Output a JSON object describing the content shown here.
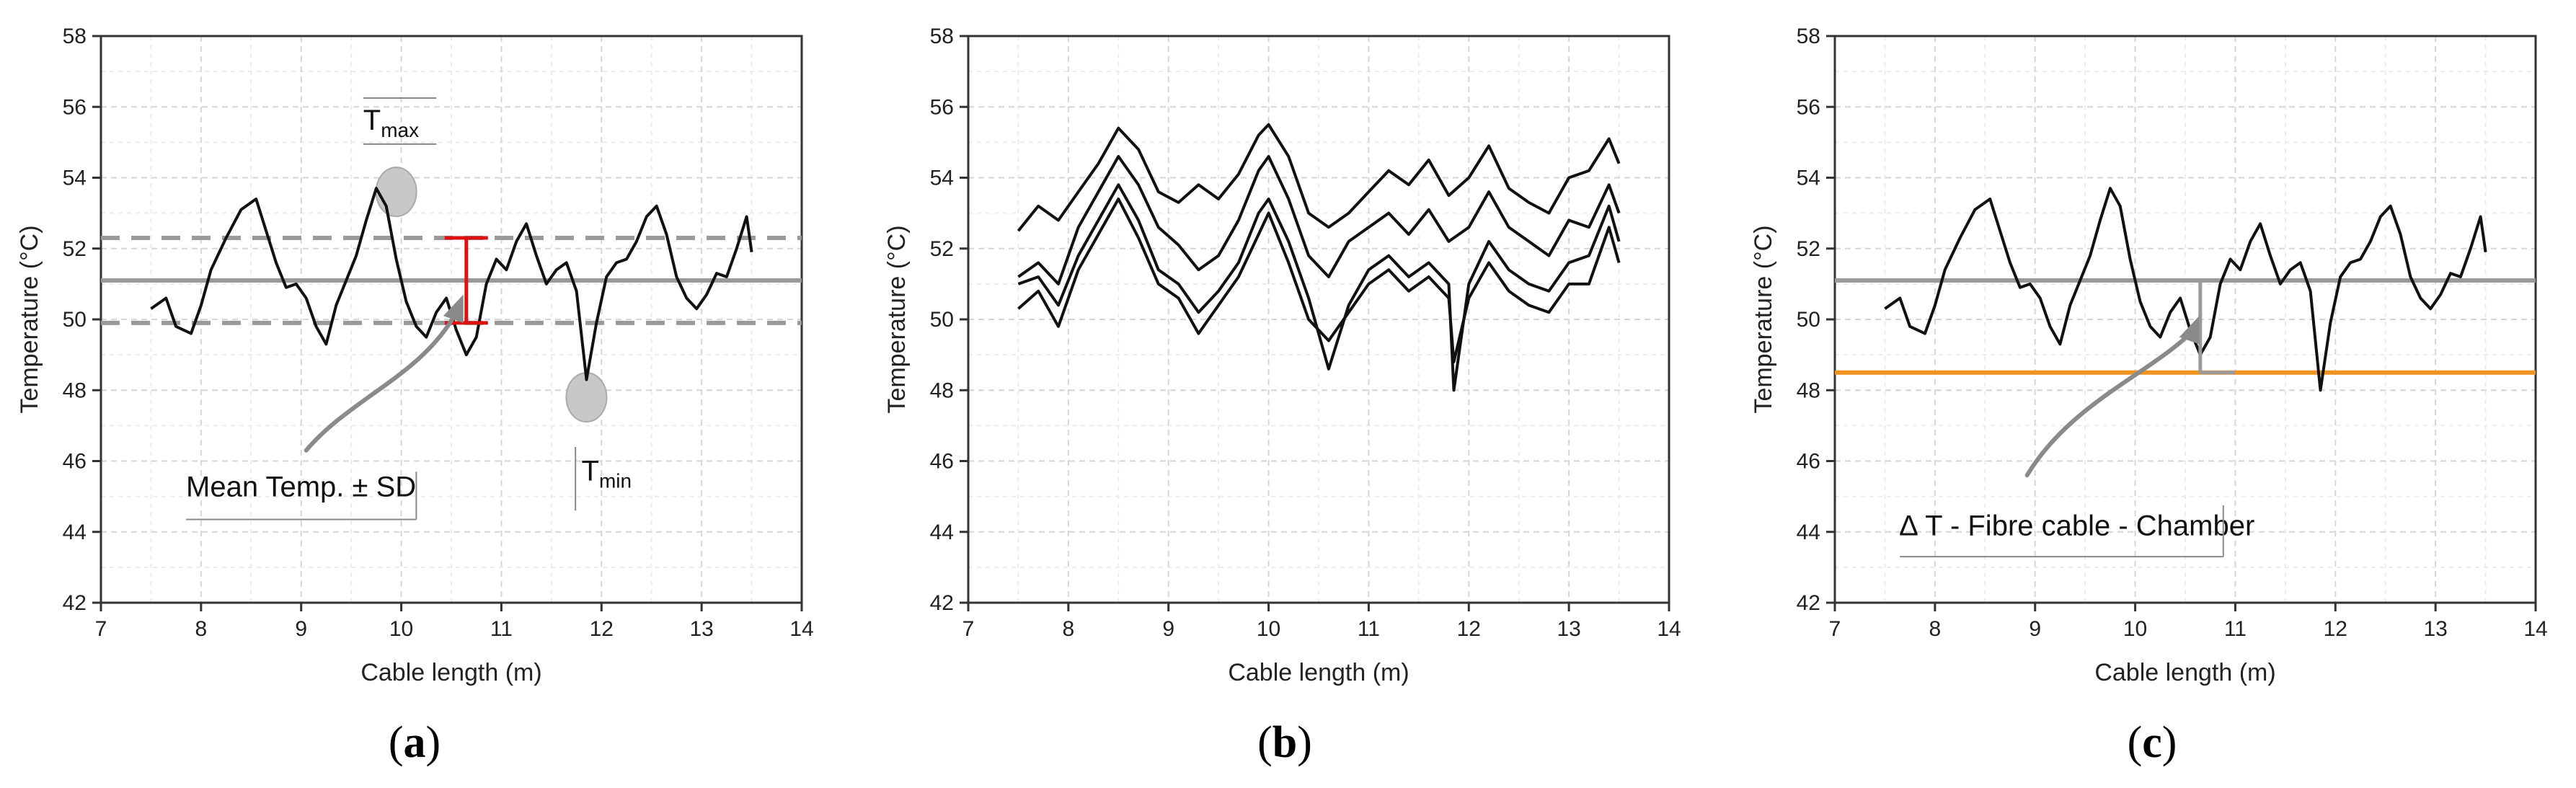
{
  "chart_data": [
    {
      "type": "line",
      "panel": "a",
      "panel_label": "a",
      "xlabel": "Cable length (m)",
      "ylabel": "Temperature (°C)",
      "xlim": [
        7,
        14
      ],
      "ylim": [
        42,
        58
      ],
      "x_ticks": [
        7,
        8,
        9,
        10,
        11,
        12,
        13,
        14
      ],
      "y_ticks": [
        42,
        44,
        46,
        48,
        50,
        52,
        54,
        56,
        58
      ],
      "grid": true,
      "series_color": "#111111",
      "series": [
        {
          "x": [
            7.5,
            7.65,
            7.75,
            7.9,
            8.0,
            8.1,
            8.25,
            8.4,
            8.55,
            8.65,
            8.75,
            8.85,
            8.95,
            9.05,
            9.15,
            9.25,
            9.35,
            9.45,
            9.55,
            9.65,
            9.75,
            9.85,
            9.95,
            10.05,
            10.15,
            10.25,
            10.35,
            10.45,
            10.55,
            10.65,
            10.75,
            10.85,
            10.95,
            11.05,
            11.15,
            11.25,
            11.35,
            11.45,
            11.55,
            11.65,
            11.75,
            11.85,
            11.95,
            12.05,
            12.15,
            12.25,
            12.35,
            12.45,
            12.55,
            12.65,
            12.75,
            12.85,
            12.95,
            13.05,
            13.15,
            13.25,
            13.35,
            13.45,
            13.5
          ],
          "y": [
            50.3,
            50.6,
            49.8,
            49.6,
            50.4,
            51.4,
            52.3,
            53.1,
            53.4,
            52.5,
            51.6,
            50.9,
            51.0,
            50.6,
            49.8,
            49.3,
            50.4,
            51.1,
            51.8,
            52.8,
            53.7,
            53.2,
            51.7,
            50.5,
            49.8,
            49.5,
            50.2,
            50.6,
            49.7,
            49.0,
            49.5,
            51.0,
            51.7,
            51.4,
            52.2,
            52.7,
            51.8,
            51.0,
            51.4,
            51.6,
            50.8,
            48.3,
            49.9,
            51.2,
            51.6,
            51.7,
            52.2,
            52.9,
            53.2,
            52.4,
            51.2,
            50.6,
            50.3,
            50.7,
            51.3,
            51.2,
            52.0,
            52.9,
            51.9
          ]
        }
      ],
      "reference_lines": {
        "mean": 51.1,
        "mean_plus_sd": 52.3,
        "mean_minus_sd": 49.9
      },
      "colors": {
        "mean_line": "#9a9a9a",
        "sd_line": "#9a9a9a",
        "error_bar": "#dd1111",
        "arrow": "#8a8a8a",
        "marker": "#c8c8c8"
      },
      "annotations": {
        "tmax_label": "T",
        "tmax_sub": "max",
        "tmin_label": "T",
        "tmin_sub": "min",
        "mean_label": "Mean Temp. ± SD"
      }
    },
    {
      "type": "line",
      "panel": "b",
      "panel_label": "b",
      "xlabel": "Cable length (m)",
      "ylabel": "Temperature (°C)",
      "xlim": [
        7,
        14
      ],
      "ylim": [
        42,
        58
      ],
      "x_ticks": [
        7,
        8,
        9,
        10,
        11,
        12,
        13,
        14
      ],
      "y_ticks": [
        42,
        44,
        46,
        48,
        50,
        52,
        54,
        56,
        58
      ],
      "grid": true,
      "series_color": "#111111",
      "series": [
        {
          "x": [
            7.5,
            7.7,
            7.9,
            8.1,
            8.3,
            8.5,
            8.7,
            8.9,
            9.1,
            9.3,
            9.5,
            9.7,
            9.9,
            10.0,
            10.2,
            10.4,
            10.6,
            10.8,
            11.0,
            11.2,
            11.4,
            11.6,
            11.8,
            12.0,
            12.2,
            12.4,
            12.6,
            12.8,
            13.0,
            13.2,
            13.4,
            13.5
          ],
          "y": [
            52.5,
            53.2,
            52.8,
            53.6,
            54.4,
            55.4,
            54.8,
            53.6,
            53.3,
            53.8,
            53.4,
            54.1,
            55.2,
            55.5,
            54.6,
            53.0,
            52.6,
            53.0,
            53.6,
            54.2,
            53.8,
            54.5,
            53.5,
            54.0,
            54.9,
            53.7,
            53.3,
            53.0,
            54.0,
            54.2,
            55.1,
            54.4
          ]
        },
        {
          "x": [
            7.5,
            7.7,
            7.9,
            8.1,
            8.3,
            8.5,
            8.7,
            8.9,
            9.1,
            9.3,
            9.5,
            9.7,
            9.9,
            10.0,
            10.2,
            10.4,
            10.6,
            10.8,
            11.0,
            11.2,
            11.4,
            11.6,
            11.8,
            12.0,
            12.2,
            12.4,
            12.6,
            12.8,
            13.0,
            13.2,
            13.4,
            13.5
          ],
          "y": [
            51.2,
            51.6,
            51.0,
            52.6,
            53.6,
            54.6,
            53.8,
            52.6,
            52.1,
            51.4,
            51.8,
            52.8,
            54.2,
            54.6,
            53.4,
            51.8,
            51.2,
            52.2,
            52.6,
            53.0,
            52.4,
            53.1,
            52.2,
            52.6,
            53.6,
            52.6,
            52.2,
            51.8,
            52.8,
            52.6,
            53.8,
            53.0
          ]
        },
        {
          "x": [
            7.5,
            7.7,
            7.9,
            8.1,
            8.3,
            8.5,
            8.7,
            8.9,
            9.1,
            9.3,
            9.5,
            9.7,
            9.9,
            10.0,
            10.2,
            10.4,
            10.6,
            10.8,
            11.0,
            11.2,
            11.4,
            11.6,
            11.8,
            11.85,
            12.0,
            12.2,
            12.4,
            12.6,
            12.8,
            13.0,
            13.2,
            13.4,
            13.5
          ],
          "y": [
            50.3,
            50.8,
            49.8,
            51.4,
            52.4,
            53.4,
            52.3,
            51.0,
            50.6,
            49.6,
            50.4,
            51.2,
            52.4,
            53.0,
            51.6,
            50.0,
            49.4,
            50.2,
            51.0,
            51.4,
            50.8,
            51.2,
            50.6,
            48.8,
            50.6,
            51.6,
            50.8,
            50.4,
            50.2,
            51.0,
            51.0,
            52.6,
            51.6
          ]
        },
        {
          "x": [
            7.5,
            7.7,
            7.9,
            8.1,
            8.3,
            8.5,
            8.7,
            8.9,
            9.1,
            9.3,
            9.5,
            9.7,
            9.9,
            10.0,
            10.2,
            10.4,
            10.6,
            10.8,
            11.0,
            11.2,
            11.4,
            11.6,
            11.8,
            11.85,
            12.0,
            12.2,
            12.4,
            12.6,
            12.8,
            13.0,
            13.2,
            13.4,
            13.5
          ],
          "y": [
            51.0,
            51.2,
            50.4,
            51.8,
            52.8,
            53.8,
            52.8,
            51.4,
            51.0,
            50.2,
            50.8,
            51.6,
            53.0,
            53.4,
            52.2,
            50.6,
            48.6,
            50.4,
            51.4,
            51.8,
            51.2,
            51.6,
            51.0,
            48.0,
            51.0,
            52.2,
            51.4,
            51.0,
            50.8,
            51.6,
            51.8,
            53.2,
            52.2
          ]
        }
      ]
    },
    {
      "type": "line",
      "panel": "c",
      "panel_label": "c",
      "xlabel": "Cable length (m)",
      "ylabel": "Temperature (°C)",
      "xlim": [
        7,
        14
      ],
      "ylim": [
        42,
        58
      ],
      "x_ticks": [
        7,
        8,
        9,
        10,
        11,
        12,
        13,
        14
      ],
      "y_ticks": [
        42,
        44,
        46,
        48,
        50,
        52,
        54,
        56,
        58
      ],
      "grid": true,
      "series_color": "#111111",
      "series": [
        {
          "x": [
            7.5,
            7.65,
            7.75,
            7.9,
            8.0,
            8.1,
            8.25,
            8.4,
            8.55,
            8.65,
            8.75,
            8.85,
            8.95,
            9.05,
            9.15,
            9.25,
            9.35,
            9.45,
            9.55,
            9.65,
            9.75,
            9.85,
            9.95,
            10.05,
            10.15,
            10.25,
            10.35,
            10.45,
            10.55,
            10.65,
            10.75,
            10.85,
            10.95,
            11.05,
            11.15,
            11.25,
            11.35,
            11.45,
            11.55,
            11.65,
            11.75,
            11.85,
            11.95,
            12.05,
            12.15,
            12.25,
            12.35,
            12.45,
            12.55,
            12.65,
            12.75,
            12.85,
            12.95,
            13.05,
            13.15,
            13.25,
            13.35,
            13.45,
            13.5
          ],
          "y": [
            50.3,
            50.6,
            49.8,
            49.6,
            50.4,
            51.4,
            52.3,
            53.1,
            53.4,
            52.5,
            51.6,
            50.9,
            51.0,
            50.6,
            49.8,
            49.3,
            50.4,
            51.1,
            51.8,
            52.8,
            53.7,
            53.2,
            51.7,
            50.5,
            49.8,
            49.5,
            50.2,
            50.6,
            49.7,
            49.0,
            49.5,
            51.0,
            51.7,
            51.4,
            52.2,
            52.7,
            51.8,
            51.0,
            51.4,
            51.6,
            50.8,
            48.0,
            49.9,
            51.2,
            51.6,
            51.7,
            52.2,
            52.9,
            53.2,
            52.4,
            51.2,
            50.6,
            50.3,
            50.7,
            51.3,
            51.2,
            52.0,
            52.9,
            51.9
          ]
        }
      ],
      "reference_lines": {
        "fibre_cable_mean": 51.1,
        "chamber": 48.5
      },
      "colors": {
        "mean_line": "#9a9a9a",
        "chamber_line": "#f0931e",
        "arrow": "#8a8a8a",
        "delta_line": "#9a9a9a"
      },
      "annotations": {
        "delta_label": "∆ T - Fibre cable - Chamber"
      }
    }
  ]
}
